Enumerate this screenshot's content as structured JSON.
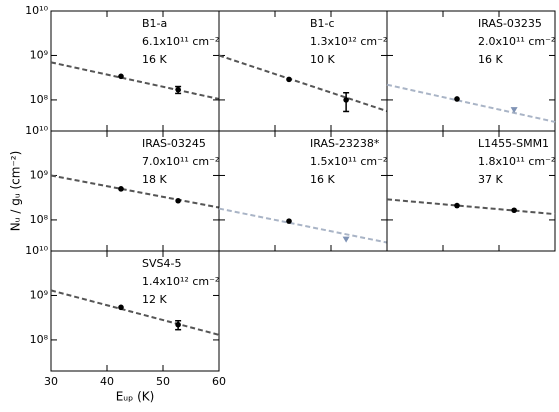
{
  "axes": {
    "xlabel": "Eᵤₚ (K)",
    "ylabel": "Nᵤ / gᵤ (cm⁻²)"
  },
  "chart_data": [
    {
      "type": "scatter",
      "title": "B1-a",
      "annotations": [
        "6.1x10¹¹  cm⁻²",
        "16 K"
      ],
      "x": [
        42.5,
        52.7
      ],
      "values": [
        340000000,
        170000000
      ],
      "errors": [
        null,
        30000000
      ],
      "upper_limits": [
        false,
        false
      ],
      "fit": {
        "x": [
          30,
          60
        ],
        "values": [
          700000000,
          105000000
        ],
        "color": "#555555"
      },
      "color": "#000000",
      "limit_color": "#7f93b5",
      "xlim": [
        30,
        60
      ],
      "ylim": [
        20000000,
        10000000000
      ],
      "log_y": true,
      "xticks": [
        30,
        40,
        50,
        60
      ],
      "yticks": [
        {
          "value": 100000000,
          "label": "10⁸"
        },
        {
          "value": 1000000000,
          "label": "10⁹"
        },
        {
          "value": 10000000000,
          "label": "10¹⁰"
        }
      ]
    },
    {
      "type": "scatter",
      "title": "B1-c",
      "annotations": [
        "1.3x10¹²  cm⁻²",
        "10 K"
      ],
      "x": [
        42.5,
        52.7
      ],
      "values": [
        290000000,
        100000000
      ],
      "errors": [
        null,
        45000000
      ],
      "upper_limits": [
        false,
        false
      ],
      "fit": {
        "x": [
          30,
          60
        ],
        "values": [
          1000000000,
          56000000
        ],
        "color": "#555555"
      },
      "color": "#000000",
      "limit_color": "#7f93b5",
      "xlim": [
        30,
        60
      ],
      "ylim": [
        20000000,
        10000000000
      ],
      "log_y": true,
      "xticks": [
        30,
        40,
        50,
        60
      ],
      "yticks": [
        {
          "value": 100000000,
          "label": "10⁸"
        },
        {
          "value": 1000000000,
          "label": "10⁹"
        },
        {
          "value": 10000000000,
          "label": "10¹⁰"
        }
      ]
    },
    {
      "type": "scatter",
      "title": "IRAS-03235",
      "annotations": [
        "2.0x10¹¹  cm⁻²",
        "16 K"
      ],
      "x": [
        42.5,
        52.7
      ],
      "values": [
        105000000,
        59000000
      ],
      "errors": [
        null,
        null
      ],
      "upper_limits": [
        false,
        true
      ],
      "fit": {
        "x": [
          30,
          60
        ],
        "values": [
          220000000,
          32000000
        ],
        "color": "#a9b4c6"
      },
      "color": "#000000",
      "limit_color": "#7f93b5",
      "xlim": [
        30,
        60
      ],
      "ylim": [
        20000000,
        10000000000
      ],
      "log_y": true,
      "xticks": [
        30,
        40,
        50,
        60
      ],
      "yticks": [
        {
          "value": 100000000,
          "label": "10⁸"
        },
        {
          "value": 1000000000,
          "label": "10⁹"
        },
        {
          "value": 10000000000,
          "label": "10¹⁰"
        }
      ]
    },
    {
      "type": "scatter",
      "title": "IRAS-03245",
      "annotations": [
        "7.0x10¹¹  cm⁻²",
        "18 K"
      ],
      "x": [
        42.5,
        52.7
      ],
      "values": [
        500000000,
        270000000
      ],
      "errors": [
        null,
        null
      ],
      "upper_limits": [
        false,
        false
      ],
      "fit": {
        "x": [
          30,
          60
        ],
        "values": [
          1000000000,
          190000000
        ],
        "color": "#555555"
      },
      "color": "#000000",
      "limit_color": "#7f93b5",
      "xlim": [
        30,
        60
      ],
      "ylim": [
        20000000,
        10000000000
      ],
      "log_y": true,
      "xticks": [
        30,
        40,
        50,
        60
      ],
      "yticks": [
        {
          "value": 100000000,
          "label": "10⁸"
        },
        {
          "value": 1000000000,
          "label": "10⁹"
        },
        {
          "value": 10000000000,
          "label": "10¹⁰"
        }
      ]
    },
    {
      "type": "scatter",
      "title": "IRAS-23238*",
      "annotations": [
        "1.5x10¹¹  cm⁻²",
        "16 K"
      ],
      "x": [
        42.5,
        52.7
      ],
      "values": [
        94000000,
        36000000
      ],
      "errors": [
        null,
        null
      ],
      "upper_limits": [
        false,
        true
      ],
      "fit": {
        "x": [
          30,
          60
        ],
        "values": [
          180000000,
          31000000
        ],
        "color": "#a9b4c6"
      },
      "color": "#000000",
      "limit_color": "#7f93b5",
      "xlim": [
        30,
        60
      ],
      "ylim": [
        20000000,
        10000000000
      ],
      "log_y": true,
      "xticks": [
        30,
        40,
        50,
        60
      ],
      "yticks": [
        {
          "value": 100000000,
          "label": "10⁸"
        },
        {
          "value": 1000000000,
          "label": "10⁹"
        },
        {
          "value": 10000000000,
          "label": "10¹⁰"
        }
      ]
    },
    {
      "type": "scatter",
      "title": "L1455-SMM1",
      "annotations": [
        "1.8x10¹¹  cm⁻²",
        "37 K"
      ],
      "x": [
        42.5,
        52.7
      ],
      "values": [
        210000000,
        165000000
      ],
      "errors": [
        null,
        null
      ],
      "upper_limits": [
        false,
        false
      ],
      "fit": {
        "x": [
          30,
          60
        ],
        "values": [
          290000000,
          135000000
        ],
        "color": "#555555"
      },
      "color": "#000000",
      "limit_color": "#7f93b5",
      "xlim": [
        30,
        60
      ],
      "ylim": [
        20000000,
        10000000000
      ],
      "log_y": true,
      "xticks": [
        30,
        40,
        50,
        60
      ],
      "yticks": [
        {
          "value": 100000000,
          "label": "10⁸"
        },
        {
          "value": 1000000000,
          "label": "10⁹"
        },
        {
          "value": 10000000000,
          "label": "10¹⁰"
        }
      ]
    },
    {
      "type": "scatter",
      "title": "SVS4-5",
      "annotations": [
        "1.4x10¹²  cm⁻²",
        "12 K"
      ],
      "x": [
        42.5,
        52.7
      ],
      "values": [
        540000000,
        220000000
      ],
      "errors": [
        null,
        50000000
      ],
      "upper_limits": [
        false,
        false
      ],
      "fit": {
        "x": [
          30,
          60
        ],
        "values": [
          1300000000,
          130000000
        ],
        "color": "#555555"
      },
      "color": "#000000",
      "limit_color": "#7f93b5",
      "xlim": [
        30,
        60
      ],
      "ylim": [
        20000000,
        10000000000
      ],
      "log_y": true,
      "xticks": [
        30,
        40,
        50,
        60
      ],
      "yticks": [
        {
          "value": 100000000,
          "label": "10⁸"
        },
        {
          "value": 1000000000,
          "label": "10⁹"
        },
        {
          "value": 10000000000,
          "label": "10¹⁰"
        }
      ]
    }
  ]
}
